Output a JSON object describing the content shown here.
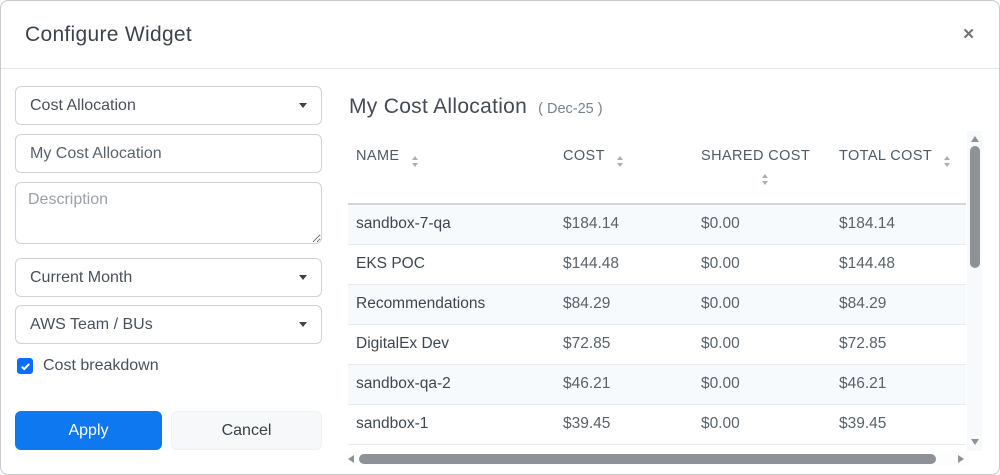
{
  "accent": "#0d78f0",
  "header": {
    "title": "Configure Widget",
    "close_label": "✕"
  },
  "form": {
    "widget_type": {
      "value": "Cost Allocation"
    },
    "name_input": {
      "value": "My Cost Allocation"
    },
    "description": {
      "placeholder": "Description"
    },
    "period": {
      "value": "Current Month"
    },
    "grouping": {
      "value": "AWS Team / BUs"
    },
    "cost_breakdown": {
      "label": "Cost breakdown",
      "checked": true
    },
    "apply_label": "Apply",
    "cancel_label": "Cancel"
  },
  "preview": {
    "title": "My Cost Allocation",
    "period_badge": "( Dec-25 )",
    "table": {
      "columns": [
        {
          "label": "NAME",
          "sortable": true
        },
        {
          "label": "COST",
          "sortable": true
        },
        {
          "label": "SHARED COST",
          "sortable": true
        },
        {
          "label": "TOTAL COST",
          "sortable": true
        }
      ],
      "rows": [
        {
          "name": "sandbox-7-qa",
          "cost": "$184.14",
          "shared_cost": "$0.00",
          "total_cost": "$184.14"
        },
        {
          "name": "EKS POC",
          "cost": "$144.48",
          "shared_cost": "$0.00",
          "total_cost": "$144.48"
        },
        {
          "name": "Recommendations",
          "cost": "$84.29",
          "shared_cost": "$0.00",
          "total_cost": "$84.29"
        },
        {
          "name": "DigitalEx Dev",
          "cost": "$72.85",
          "shared_cost": "$0.00",
          "total_cost": "$72.85"
        },
        {
          "name": "sandbox-qa-2",
          "cost": "$46.21",
          "shared_cost": "$0.00",
          "total_cost": "$46.21"
        },
        {
          "name": "sandbox-1",
          "cost": "$39.45",
          "shared_cost": "$0.00",
          "total_cost": "$39.45"
        }
      ]
    }
  }
}
